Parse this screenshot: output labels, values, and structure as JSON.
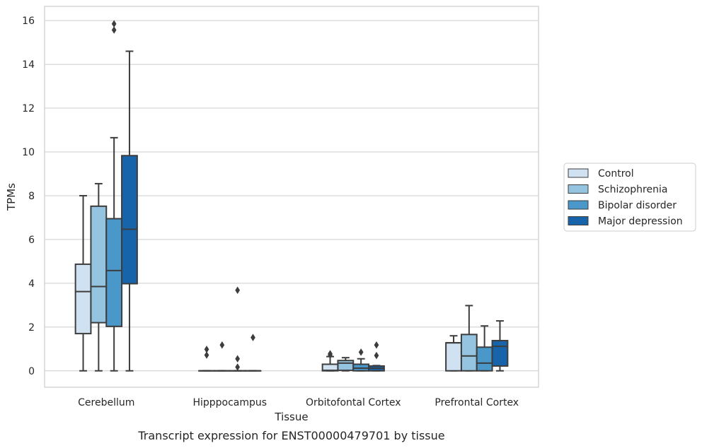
{
  "chart_data": {
    "type": "boxplot",
    "xlabel": "Tissue",
    "ylabel": "TPMs",
    "caption": "Transcript expression for ENST00000479701 by tissue",
    "ylim": [
      -0.75,
      16.65
    ],
    "yticks": [
      0,
      2,
      4,
      6,
      8,
      10,
      12,
      14,
      16
    ],
    "grid": "horizontal",
    "legend_position": "right",
    "categories": [
      "Cerebellum",
      "Hipppocampus",
      "Orbitofontal Cortex",
      "Prefrontal Cortex"
    ],
    "series": [
      {
        "name": "Control",
        "color": "#d0e1f2",
        "boxes": [
          {
            "whislo": 0,
            "q1": 1.7,
            "med": 3.62,
            "q3": 4.87,
            "whishi": 8.0,
            "fliers": []
          },
          {
            "whislo": 0,
            "q1": 0,
            "med": 0,
            "q3": 0,
            "whishi": 0,
            "fliers": [
              0.98,
              0.72
            ]
          },
          {
            "whislo": 0,
            "q1": 0,
            "med": 0.02,
            "q3": 0.3,
            "whishi": 0.65,
            "fliers": [
              0.78,
              0.72
            ]
          },
          {
            "whislo": 0,
            "q1": 0,
            "med": 1.28,
            "q3": 1.28,
            "whishi": 1.6,
            "fliers": []
          }
        ]
      },
      {
        "name": "Schizophrenia",
        "color": "#94c4df",
        "boxes": [
          {
            "whislo": 0,
            "q1": 2.2,
            "med": 3.85,
            "q3": 7.52,
            "whishi": 8.55,
            "fliers": []
          },
          {
            "whislo": 0,
            "q1": 0,
            "med": 0,
            "q3": 0,
            "whishi": 0,
            "fliers": [
              1.18
            ]
          },
          {
            "whislo": 0,
            "q1": 0.02,
            "med": 0.35,
            "q3": 0.47,
            "whishi": 0.6,
            "fliers": []
          },
          {
            "whislo": 0,
            "q1": 0,
            "med": 0.68,
            "q3": 1.66,
            "whishi": 2.98,
            "fliers": []
          }
        ]
      },
      {
        "name": "Bipolar disorder",
        "color": "#4a98c9",
        "boxes": [
          {
            "whislo": 0,
            "q1": 2.03,
            "med": 4.58,
            "q3": 6.95,
            "whishi": 10.65,
            "fliers": [
              15.85,
              15.57
            ]
          },
          {
            "whislo": 0,
            "q1": 0,
            "med": 0,
            "q3": 0,
            "whishi": 0,
            "fliers": [
              3.68,
              0.55,
              0.17
            ]
          },
          {
            "whislo": 0,
            "q1": 0,
            "med": 0.12,
            "q3": 0.3,
            "whishi": 0.55,
            "fliers": [
              0.85
            ]
          },
          {
            "whislo": 0,
            "q1": 0,
            "med": 0.35,
            "q3": 1.08,
            "whishi": 2.05,
            "fliers": []
          }
        ]
      },
      {
        "name": "Major depression",
        "color": "#1764ab",
        "boxes": [
          {
            "whislo": 0,
            "q1": 3.98,
            "med": 6.47,
            "q3": 9.83,
            "whishi": 14.6,
            "fliers": []
          },
          {
            "whislo": 0,
            "q1": 0,
            "med": 0,
            "q3": 0,
            "whishi": 0,
            "fliers": [
              1.52
            ]
          },
          {
            "whislo": 0,
            "q1": 0,
            "med": 0.12,
            "q3": 0.22,
            "whishi": 0.24,
            "fliers": [
              1.18,
              0.7
            ]
          },
          {
            "whislo": 0,
            "q1": 0.22,
            "med": 1.12,
            "q3": 1.38,
            "whishi": 2.28,
            "fliers": []
          }
        ]
      }
    ]
  }
}
